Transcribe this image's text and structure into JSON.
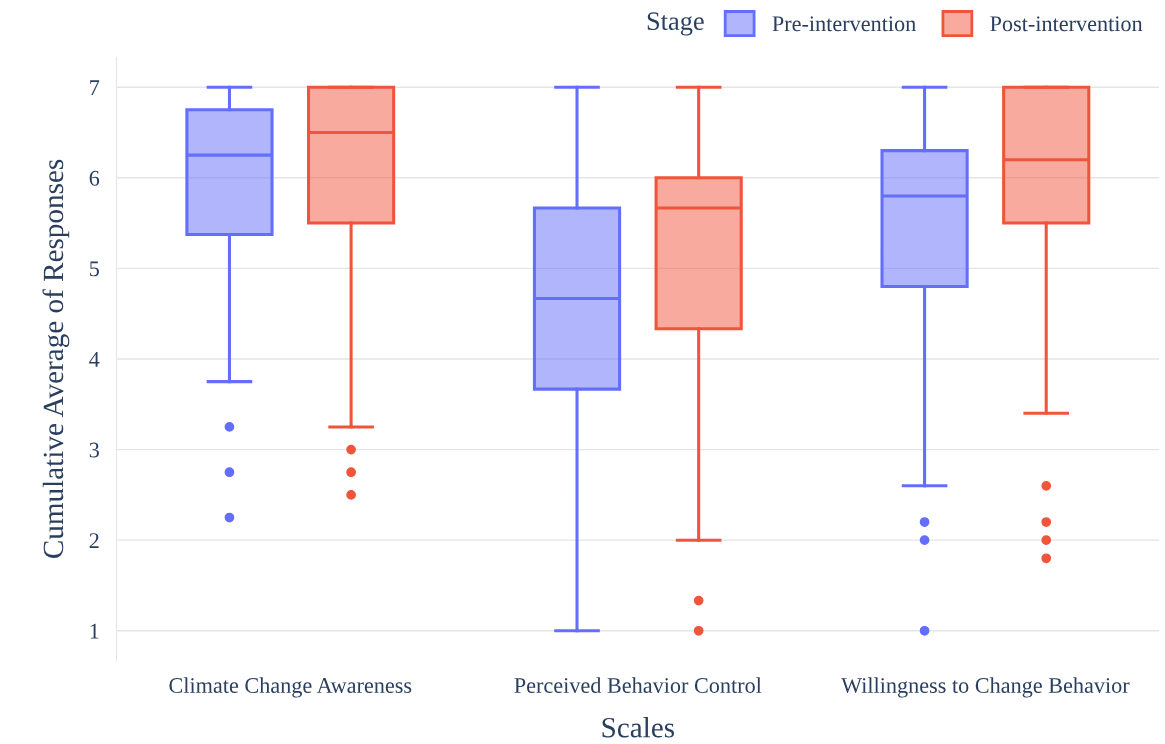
{
  "chart_data": {
    "type": "box",
    "xlabel": "Scales",
    "ylabel": "Cumulative Average of Responses",
    "legend_title": "Stage",
    "legend": "top right",
    "grid": "y",
    "categories": [
      "Climate Change Awareness",
      "Perceived Behavior Control",
      "Willingness to Change Behavior"
    ],
    "ylim": [
      0.67,
      7.33
    ],
    "yticks": [
      1,
      2,
      3,
      4,
      5,
      6,
      7
    ],
    "series": [
      {
        "name": "Pre-intervention",
        "color": "#636efa",
        "boxes": [
          {
            "low": 3.75,
            "q1": 5.375,
            "median": 6.25,
            "q3": 6.75,
            "high": 7,
            "outliers": [
              3.25,
              2.75,
              2.25
            ]
          },
          {
            "low": 1,
            "q1": 3.667,
            "median": 4.667,
            "q3": 5.667,
            "high": 7
          },
          {
            "low": 2.6,
            "q1": 4.8,
            "median": 5.8,
            "q3": 6.3,
            "high": 7,
            "outliers": [
              2.2,
              2,
              1
            ]
          }
        ]
      },
      {
        "name": "Post-intervention",
        "color": "#ef553b",
        "boxes": [
          {
            "low": 3.25,
            "q1": 5.5,
            "median": 6.5,
            "q3": 7,
            "high": 7,
            "outliers": [
              3,
              2.75,
              2.5
            ]
          },
          {
            "low": 2,
            "q1": 4.333,
            "median": 5.667,
            "q3": 6,
            "high": 7,
            "outliers": [
              1.333,
              1
            ]
          },
          {
            "low": 3.4,
            "q1": 5.5,
            "median": 6.2,
            "q3": 7,
            "high": 7,
            "outliers": [
              2.6,
              2.2,
              2,
              1.8
            ]
          }
        ]
      }
    ]
  }
}
